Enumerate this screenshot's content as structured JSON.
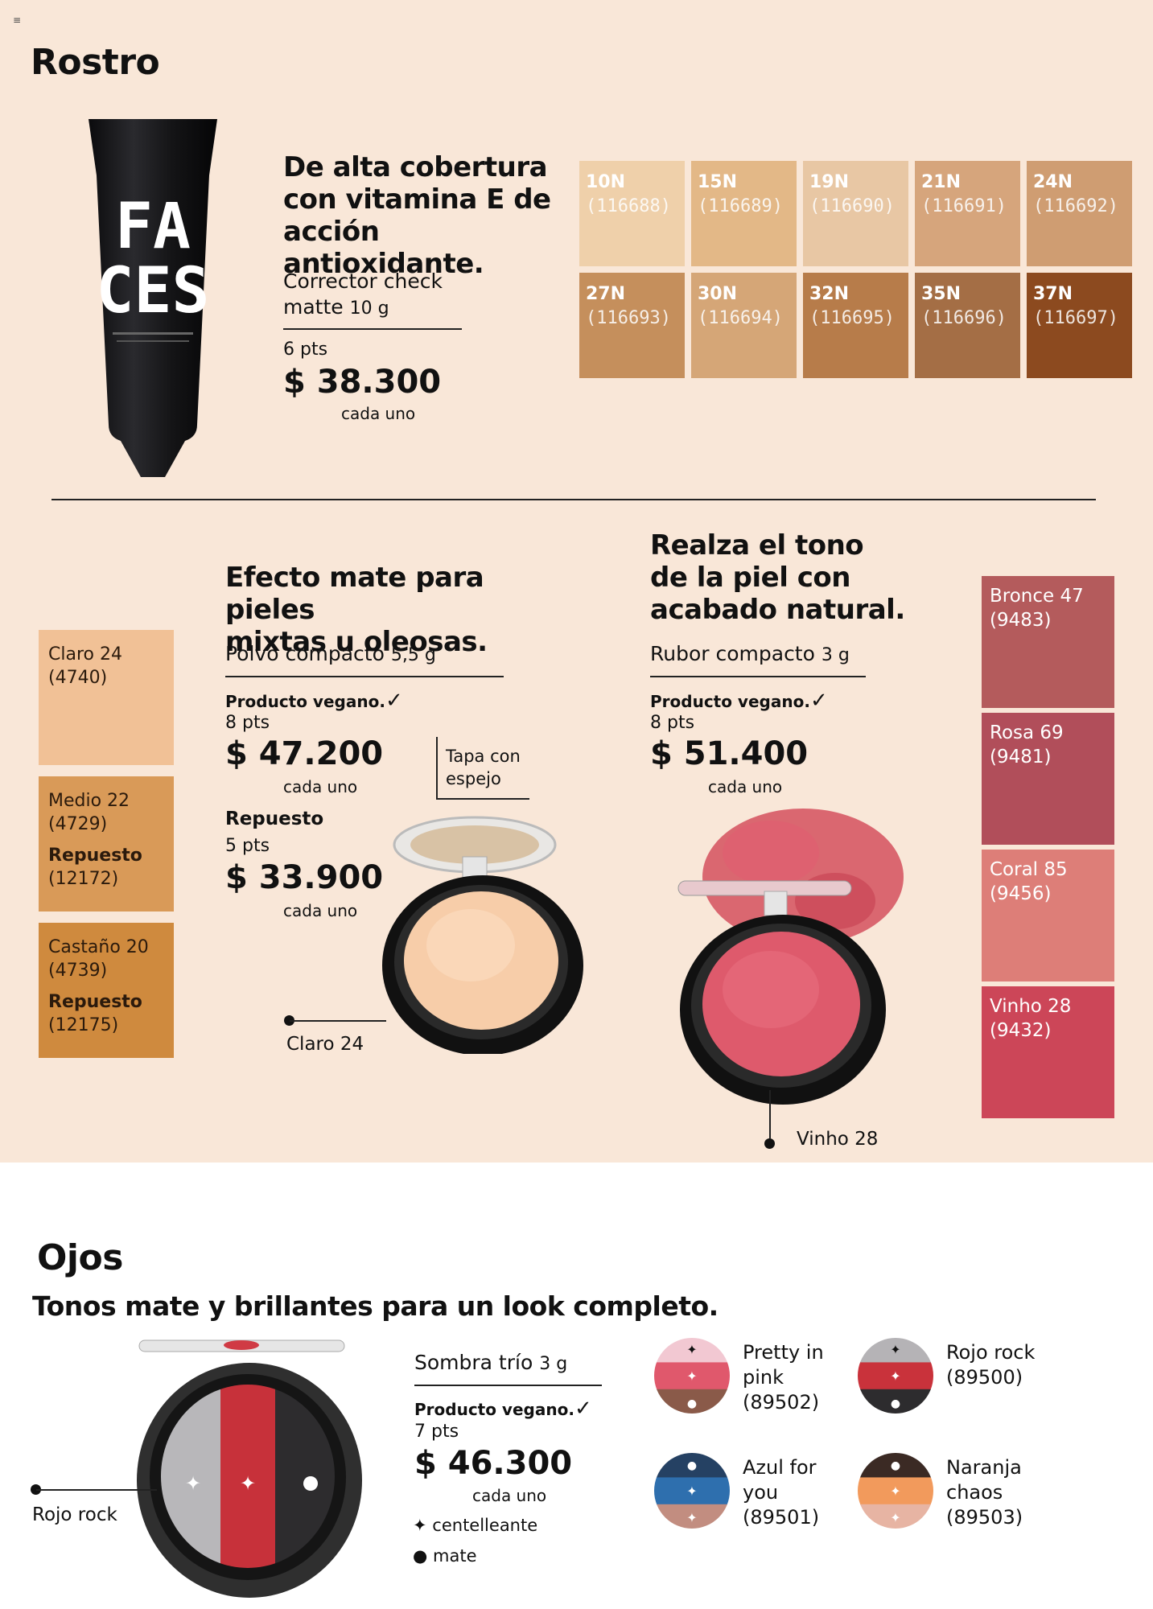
{
  "header": {
    "menu_icon": "menu-icon"
  },
  "face": {
    "title": "Rostro",
    "corrector": {
      "tube_text_1": "FA",
      "tube_text_2": "CES",
      "headline": [
        "De alta cobertura",
        "con vitamina E de",
        "acción antioxidante."
      ],
      "product_name": "Corrector check",
      "product_name_2": "matte",
      "size": "10 g",
      "pts": "6 pts",
      "price": "$ 38.300",
      "each": "cada uno",
      "shades": [
        {
          "tone": "10N",
          "code": "(116688)",
          "color": "#efd0aa"
        },
        {
          "tone": "15N",
          "code": "(116689)",
          "color": "#e3b887"
        },
        {
          "tone": "19N",
          "code": "(116690)",
          "color": "#e8c7a4"
        },
        {
          "tone": "21N",
          "code": "(116691)",
          "color": "#d6a57c"
        },
        {
          "tone": "24N",
          "code": "(116692)",
          "color": "#cf9d72"
        },
        {
          "tone": "27N",
          "code": "(116693)",
          "color": "#c58f5c"
        },
        {
          "tone": "30N",
          "code": "(116694)",
          "color": "#d5a677"
        },
        {
          "tone": "32N",
          "code": "(116695)",
          "color": "#b77c4a"
        },
        {
          "tone": "35N",
          "code": "(116696)",
          "color": "#a46e45"
        },
        {
          "tone": "37N",
          "code": "(116697)",
          "color": "#8c4a1f"
        }
      ]
    },
    "powder": {
      "headline": [
        "Efecto mate para pieles",
        "mixtas u oleosas."
      ],
      "product_name": "Polvo compacto",
      "size": "5,5 g",
      "vegan": "Producto vegano.",
      "pts": "8 pts",
      "price": "$ 47.200",
      "each": "cada uno",
      "refill_label": "Repuesto",
      "refill_pts": "5 pts",
      "refill_price": "$ 33.900",
      "refill_each": "cada uno",
      "mirror_callout": [
        "Tapa con",
        "espejo"
      ],
      "shade_callout": "Claro 24",
      "shades": [
        {
          "name": "Claro 24",
          "code": "(4740)",
          "color": "#f1c196"
        },
        {
          "name": "Medio 22",
          "code": "(4729)",
          "refill_label": "Repuesto",
          "refill_code": "(12172)",
          "color": "#d99a58"
        },
        {
          "name": "Castaño 20",
          "code": "(4739)",
          "refill_label": "Repuesto",
          "refill_code": "(12175)",
          "color": "#cf8a3e"
        }
      ]
    },
    "blush": {
      "headline": [
        "Realza el tono",
        "de la piel con",
        "acabado natural."
      ],
      "product_name": "Rubor compacto",
      "size": "3 g",
      "vegan": "Producto vegano.",
      "pts": "8 pts",
      "price": "$ 51.400",
      "each": "cada uno",
      "shade_callout": "Vinho 28",
      "shades": [
        {
          "name": "Bronce 47",
          "code": "(9483)",
          "color": "#b45b5c"
        },
        {
          "name": "Rosa 69",
          "code": "(9481)",
          "color": "#b14e5a"
        },
        {
          "name": "Coral 85",
          "code": "(9456)",
          "color": "#dd7e78"
        },
        {
          "name": "Vinho 28",
          "code": "(9432)",
          "color": "#cc4658"
        }
      ]
    }
  },
  "eyes": {
    "title": "Ojos",
    "headline": "Tonos mate y brillantes para un look completo.",
    "product_name": "Sombra trío",
    "size": "3 g",
    "vegan": "Producto vegano.",
    "pts": "7 pts",
    "price": "$ 46.300",
    "each": "cada uno",
    "legend_glitter": "centelleante",
    "legend_matte": "mate",
    "shade_callout": "Rojo rock",
    "trios": [
      {
        "name": [
          "Pretty in",
          "pink"
        ],
        "code": "(89502)",
        "colors": [
          "#f2c8d2",
          "#e0586c",
          "#8a5a49"
        ],
        "marks": [
          "✦",
          "✦",
          "●"
        ]
      },
      {
        "name": [
          "Rojo rock",
          ""
        ],
        "code": "(89500)",
        "colors": [
          "#b5b3b6",
          "#c9323b",
          "#2d2c2e"
        ],
        "marks": [
          "✦",
          "✦",
          "●"
        ]
      },
      {
        "name": [
          "Azul for",
          "you"
        ],
        "code": "(89501)",
        "colors": [
          "#254163",
          "#2e6fae",
          "#c28d80"
        ],
        "marks": [
          "●",
          "✦",
          "✦"
        ]
      },
      {
        "name": [
          "Naranja",
          "chaos"
        ],
        "code": "(89503)",
        "colors": [
          "#3b2a24",
          "#f29a5c",
          "#e7b4a3"
        ],
        "marks": [
          "●",
          "✦",
          "✦"
        ]
      }
    ]
  }
}
